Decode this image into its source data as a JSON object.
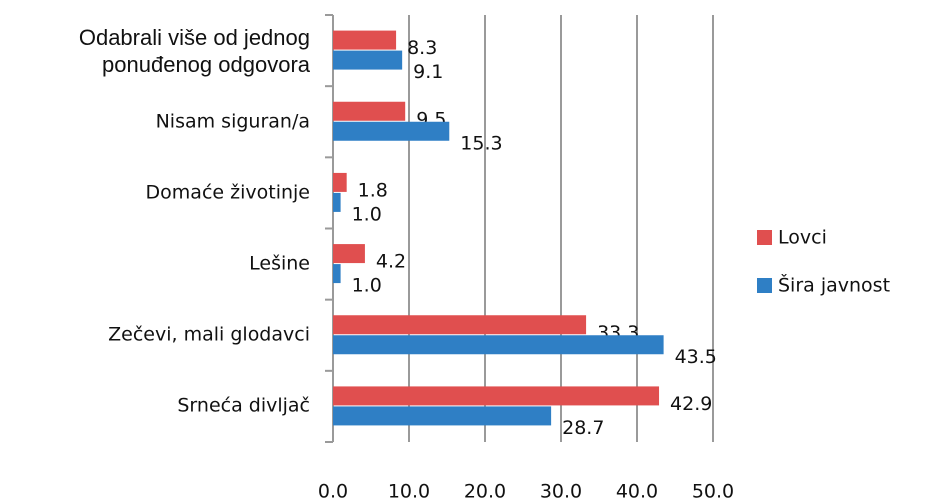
{
  "chart_data": {
    "type": "bar",
    "orientation": "horizontal",
    "categories": [
      "Odabrali više od jednog ponuđenog odgovora",
      "Nisam siguran/a",
      "Domaće životinje",
      "Lešine",
      "Zečevi, mali glodavci",
      "Srneća divljač"
    ],
    "series": [
      {
        "name": "Lovci",
        "color": "#e04f4f",
        "values": [
          8.3,
          9.5,
          1.8,
          4.2,
          33.3,
          42.9
        ],
        "value_labels": [
          "8.3",
          "9.5",
          "1.8",
          "4.2",
          "33.3",
          "42.9"
        ]
      },
      {
        "name": "Šira javnost",
        "color": "#2f7fc5",
        "values": [
          9.1,
          15.3,
          1.0,
          1.0,
          43.5,
          28.7
        ],
        "value_labels": [
          "9.1",
          "15.3",
          "1.0",
          "1.0",
          "43.5",
          "28.7"
        ]
      }
    ],
    "xlim": [
      0,
      50
    ],
    "xticks": [
      {
        "value": 0,
        "label": "0.0"
      },
      {
        "value": 10,
        "label": "10.0"
      },
      {
        "value": 20,
        "label": "20.0"
      },
      {
        "value": 30,
        "label": "30.0"
      },
      {
        "value": 40,
        "label": "40.0"
      },
      {
        "value": 50,
        "label": "50.0"
      }
    ],
    "grid": true,
    "legend": "right"
  }
}
